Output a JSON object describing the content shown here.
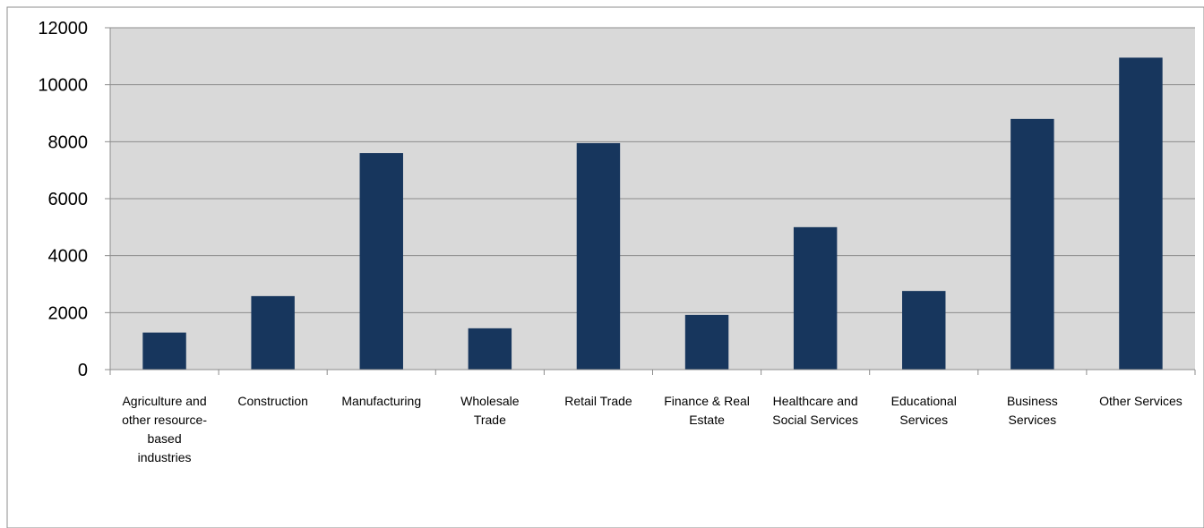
{
  "chart_data": {
    "type": "bar",
    "title": "",
    "xlabel": "",
    "ylabel": "",
    "ylim": [
      0,
      12000
    ],
    "yticks": [
      0,
      2000,
      4000,
      6000,
      8000,
      10000,
      12000
    ],
    "grid": true,
    "legend": "none",
    "categories": [
      "Agriculture and other resource-based industries",
      "Construction",
      "Manufacturing",
      "Wholesale Trade",
      "Retail Trade",
      "Finance & Real Estate",
      "Healthcare and Social Services",
      "Educational Services",
      "Business Services",
      "Other Services"
    ],
    "category_label_lines": [
      [
        "Agriculture and",
        "other resource-",
        "based",
        "industries"
      ],
      [
        "Construction"
      ],
      [
        "Manufacturing"
      ],
      [
        "Wholesale",
        "Trade"
      ],
      [
        "Retail Trade"
      ],
      [
        "Finance & Real",
        "Estate"
      ],
      [
        "Healthcare and",
        "Social Services"
      ],
      [
        "Educational",
        "Services"
      ],
      [
        "Business",
        "Services"
      ],
      [
        "Other Services"
      ]
    ],
    "values": [
      1300,
      2580,
      7600,
      1450,
      7950,
      1920,
      5000,
      2760,
      8800,
      10950
    ],
    "colors": {
      "bar": "#17365d",
      "plot_bg": "#d9d9d9",
      "grid": "#8c8c8c",
      "axis": "#8c8c8c"
    }
  }
}
